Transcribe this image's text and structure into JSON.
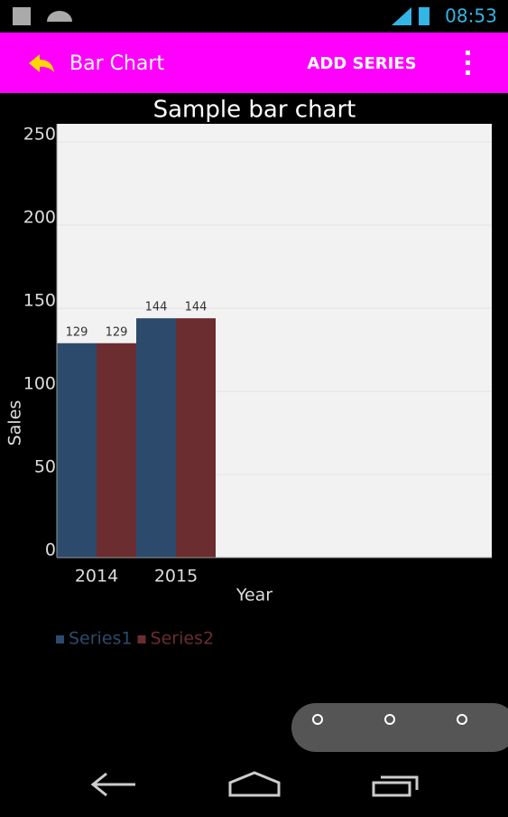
{
  "status_bar": {
    "time": "08:53"
  },
  "app_bar": {
    "title": "Bar Chart",
    "action": "ADD SERIES"
  },
  "chart_data": {
    "type": "bar",
    "title": "Sample bar chart",
    "x_label": "Year",
    "y_label": "Sales",
    "categories": [
      "2014",
      "2015"
    ],
    "series": [
      {
        "name": "Series1",
        "color": "#2c4a6b",
        "values": [
          129,
          144
        ]
      },
      {
        "name": "Series2",
        "color": "#6b2d30",
        "values": [
          129,
          144
        ]
      }
    ],
    "ylim": [
      0,
      261
    ],
    "yticks": [
      0,
      50,
      100,
      150,
      200,
      250
    ],
    "grid": true,
    "legend": "bottom-left"
  }
}
